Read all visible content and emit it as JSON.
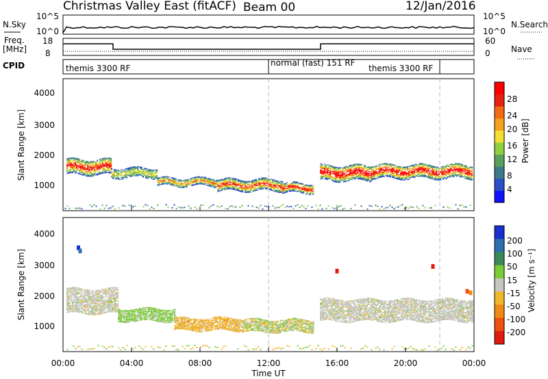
{
  "header": {
    "station": "Christmas Valley East (fitACF)",
    "beam": "Beam 00",
    "date": "12/Jan/2016"
  },
  "noise_panel": {
    "left_label": "N.Sky",
    "right_label": "N.Search",
    "left_ticks": [
      "10^5",
      "10^0"
    ],
    "right_ticks": [
      "10^5",
      "10^0"
    ]
  },
  "freq_panel": {
    "left_label_line1": "Freq.",
    "left_label_line2": "[MHz]",
    "left_ticks": [
      "18",
      "8"
    ],
    "right_label": "Nave",
    "right_ticks": [
      "60",
      "0"
    ]
  },
  "cpid_panel": {
    "label": "CPID",
    "segments": [
      {
        "name": "themis 3300 RF",
        "start_hour": 0,
        "end_hour": 12
      },
      {
        "name": "normal (fast) 151 RF",
        "start_hour": 12,
        "end_hour": 16
      },
      {
        "name": "themis 3300 RF",
        "start_hour": 16,
        "end_hour": 22
      }
    ]
  },
  "x_axis": {
    "label": "Time UT",
    "ticks": [
      "00:00",
      "04:00",
      "08:00",
      "12:00",
      "16:00",
      "20:00",
      "00:00"
    ]
  },
  "power_panel": {
    "ylabel": "Slant Range [km]",
    "yticks": [
      "1000",
      "2000",
      "3000",
      "4000"
    ],
    "colorbar_label": "Power [dB]",
    "colorbar_ticks": [
      "4",
      "8",
      "12",
      "16",
      "20",
      "24",
      "28"
    ],
    "colors": [
      "#1010ff",
      "#2a4fc6",
      "#3c7a8a",
      "#5da05d",
      "#8fcf40",
      "#f3e030",
      "#f5a21e",
      "#f36a12",
      "#e82010",
      "#ff0000"
    ]
  },
  "velocity_panel": {
    "ylabel": "Slant Range [km]",
    "yticks": [
      "1000",
      "2000",
      "3000",
      "4000"
    ],
    "colorbar_label": "Velocity [m s⁻¹]",
    "colorbar_ticks": [
      "200",
      "100",
      "50",
      "15",
      "-15",
      "-50",
      "-100",
      "-200"
    ],
    "colors": [
      "#1a2fd0",
      "#2e6fb0",
      "#3c8a5a",
      "#7ccc3a",
      "#c7c7bf",
      "#f0b72b",
      "#f08a14",
      "#f05010",
      "#e01c10"
    ]
  },
  "chart_data": {
    "type": "heatmap",
    "x_range_hours": [
      0,
      24
    ],
    "y_range_km": [
      180,
      4500
    ],
    "power_regions": [
      {
        "t0": 0.2,
        "t1": 2.8,
        "r_center": 1600,
        "r_half": 250,
        "level": 0.75
      },
      {
        "t0": 2.8,
        "t1": 5.5,
        "r_center": 1400,
        "r_half": 150,
        "level": 0.4
      },
      {
        "t0": 5.5,
        "t1": 9.0,
        "r_center": 1100,
        "r_half": 120,
        "level": 0.55
      },
      {
        "t0": 9.0,
        "t1": 12.8,
        "r_center": 1000,
        "r_half": 180,
        "level": 0.7
      },
      {
        "t0": 12.8,
        "t1": 14.6,
        "r_center": 900,
        "r_half": 150,
        "level": 0.75
      },
      {
        "t0": 15.0,
        "t1": 18.0,
        "r_center": 1400,
        "r_half": 250,
        "level": 0.85
      },
      {
        "t0": 18.0,
        "t1": 23.9,
        "r_center": 1450,
        "r_half": 220,
        "level": 0.8
      }
    ],
    "velocity_regions": [
      {
        "t0": 0.2,
        "t1": 3.2,
        "r_center": 1800,
        "r_half": 400,
        "kind": "gray"
      },
      {
        "t0": 3.2,
        "t1": 6.5,
        "r_center": 1350,
        "r_half": 200,
        "kind": "green"
      },
      {
        "t0": 6.5,
        "t1": 10.5,
        "r_center": 1050,
        "r_half": 200,
        "kind": "orange"
      },
      {
        "t0": 10.5,
        "t1": 14.6,
        "r_center": 1000,
        "r_half": 200,
        "kind": "mixed"
      },
      {
        "t0": 15.0,
        "t1": 23.9,
        "r_center": 1500,
        "r_half": 350,
        "kind": "gray"
      }
    ]
  }
}
